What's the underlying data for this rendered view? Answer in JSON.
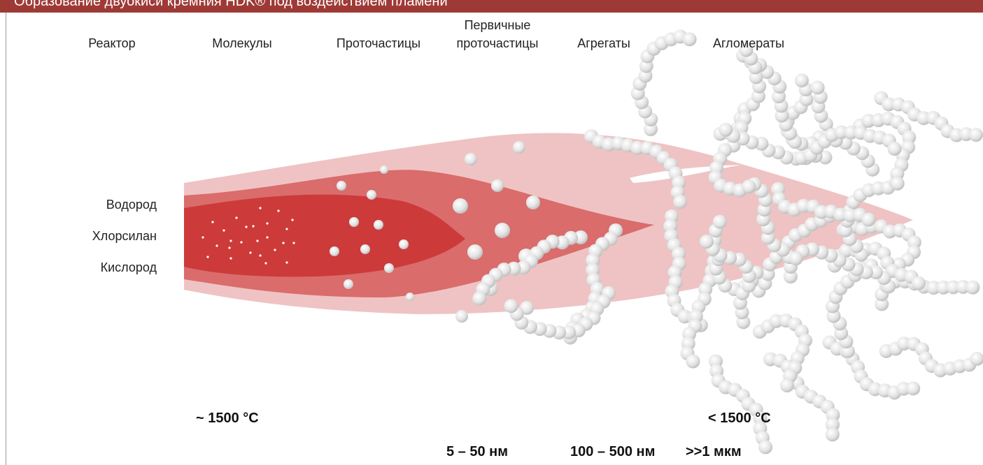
{
  "header": {
    "title": "Образование двуокиси кремния HDK® под воздействием пламени"
  },
  "stages": [
    "Реактор",
    "Молекулы",
    "Проточастицы",
    "Первичные\nпроточастицы",
    "Агрегаты",
    "Агломераты"
  ],
  "inputs": [
    "Водород",
    "Хлорсилан",
    "Кислород"
  ],
  "temperatures": [
    "~ 1500 °C",
    "< 1500 °C"
  ],
  "sizes": [
    "5 – 50 нм",
    "100 – 500 нм",
    ">>1 мкм"
  ]
}
